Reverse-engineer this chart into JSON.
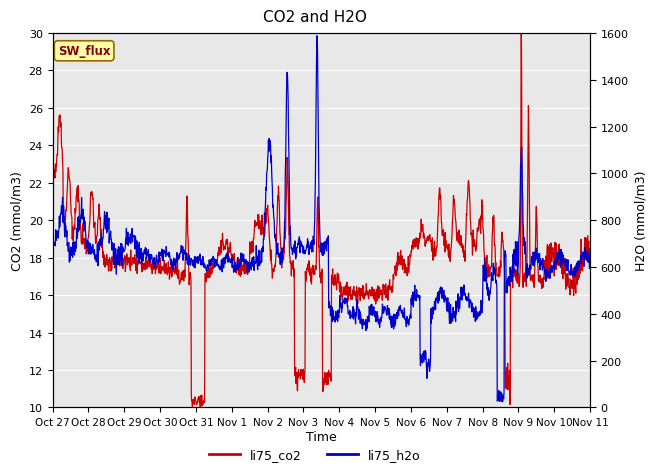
{
  "title": "CO2 and H2O",
  "xlabel": "Time",
  "ylabel_left": "CO2 (mmol/m3)",
  "ylabel_right": "H2O (mmol/m3)",
  "ylim_left": [
    10,
    30
  ],
  "ylim_right": [
    0,
    1600
  ],
  "yticks_left": [
    10,
    12,
    14,
    16,
    18,
    20,
    22,
    24,
    26,
    28,
    30
  ],
  "yticks_right_major": [
    0,
    200,
    400,
    600,
    800,
    1000,
    1200,
    1400,
    1600
  ],
  "color_co2": "#cc0000",
  "color_h2o": "#0000cc",
  "fig_facecolor": "#ffffff",
  "plot_facecolor": "#e8e8e8",
  "annotation_text": "SW_flux",
  "annotation_facecolor": "#ffffaa",
  "annotation_edgecolor": "#996600",
  "annotation_textcolor": "#880000",
  "x_tick_labels": [
    "Oct 27",
    "Oct 28",
    "Oct 29",
    "Oct 30",
    "Oct 31",
    "Nov 1",
    "Nov 2",
    "Nov 3",
    "Nov 4",
    "Nov 5",
    "Nov 6",
    "Nov 7",
    "Nov 8",
    "Nov 9",
    "Nov 10",
    "Nov 11"
  ],
  "legend_entries": [
    "li75_co2",
    "li75_h2o"
  ],
  "grid_color": "#ffffff",
  "linewidth": 0.9
}
